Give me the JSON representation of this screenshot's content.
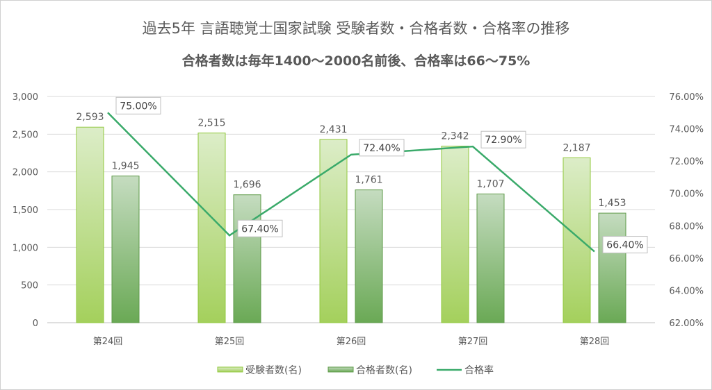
{
  "chart_data": {
    "type": "bar+line",
    "title": "過去5年 言語聴覚士国家試験 受験者数・合格者数・合格率の推移",
    "subtitle": "合格者数は毎年1400～2000名前後、合格率は66～75%",
    "categories": [
      "第24回",
      "第25回",
      "第26回",
      "第27回",
      "第28回"
    ],
    "series": [
      {
        "name": "受験者数(名)",
        "type": "bar",
        "axis": "left",
        "values": [
          2593,
          2515,
          2431,
          2342,
          2187
        ],
        "labels": [
          "2,593",
          "2,515",
          "2,431",
          "2,342",
          "2,187"
        ],
        "color": "#a9d46a"
      },
      {
        "name": "合格者数(名)",
        "type": "bar",
        "axis": "left",
        "values": [
          1945,
          1696,
          1761,
          1707,
          1453
        ],
        "labels": [
          "1,945",
          "1,696",
          "1,761",
          "1,707",
          "1,453"
        ],
        "color": "#6fae5a"
      },
      {
        "name": "合格率",
        "type": "line",
        "axis": "right",
        "values": [
          75.0,
          67.4,
          72.4,
          72.9,
          66.4
        ],
        "labels": [
          "75.00%",
          "67.40%",
          "72.40%",
          "72.90%",
          "66.40%"
        ],
        "color": "#3aaa6a"
      }
    ],
    "left_axis": {
      "ylim": [
        0,
        3000
      ],
      "ticks": [
        "0",
        "500",
        "1,000",
        "1,500",
        "2,000",
        "2,500",
        "3,000"
      ]
    },
    "right_axis": {
      "ylim": [
        62,
        76
      ],
      "ticks": [
        "62.00%",
        "64.00%",
        "66.00%",
        "68.00%",
        "70.00%",
        "72.00%",
        "74.00%",
        "76.00%"
      ]
    },
    "grid": true,
    "legend": "bottom"
  }
}
